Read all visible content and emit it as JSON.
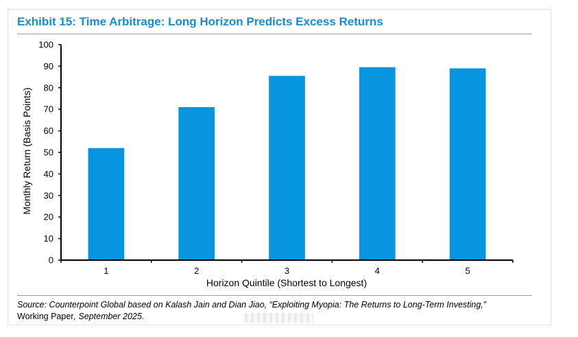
{
  "header": {
    "title": "Exhibit 15: Time Arbitrage: Long Horizon Predicts Excess Returns"
  },
  "chart_data": {
    "type": "bar",
    "title": "Exhibit 15: Time Arbitrage: Long Horizon Predicts Excess Returns",
    "categories": [
      "1",
      "2",
      "3",
      "4",
      "5"
    ],
    "values": [
      52,
      71,
      85.5,
      89.5,
      89
    ],
    "xlabel": "Horizon Quintile (Shortest to Longest)",
    "ylabel": "Monthly Return (Basis Points)",
    "ylim": [
      0,
      100
    ],
    "yticks": [
      0,
      10,
      20,
      30,
      40,
      50,
      60,
      70,
      80,
      90,
      100
    ],
    "grid": false,
    "legend": "none",
    "bar_color": "#0795e0"
  },
  "footer": {
    "source_prefix": "Source: Counterpoint Global based on Kalash Jain and Dian Jiao, “Exploiting Myopia: The Returns to Long-Term Investing,”",
    "source_middle": "Working Paper",
    "source_suffix": ", September 2025."
  }
}
